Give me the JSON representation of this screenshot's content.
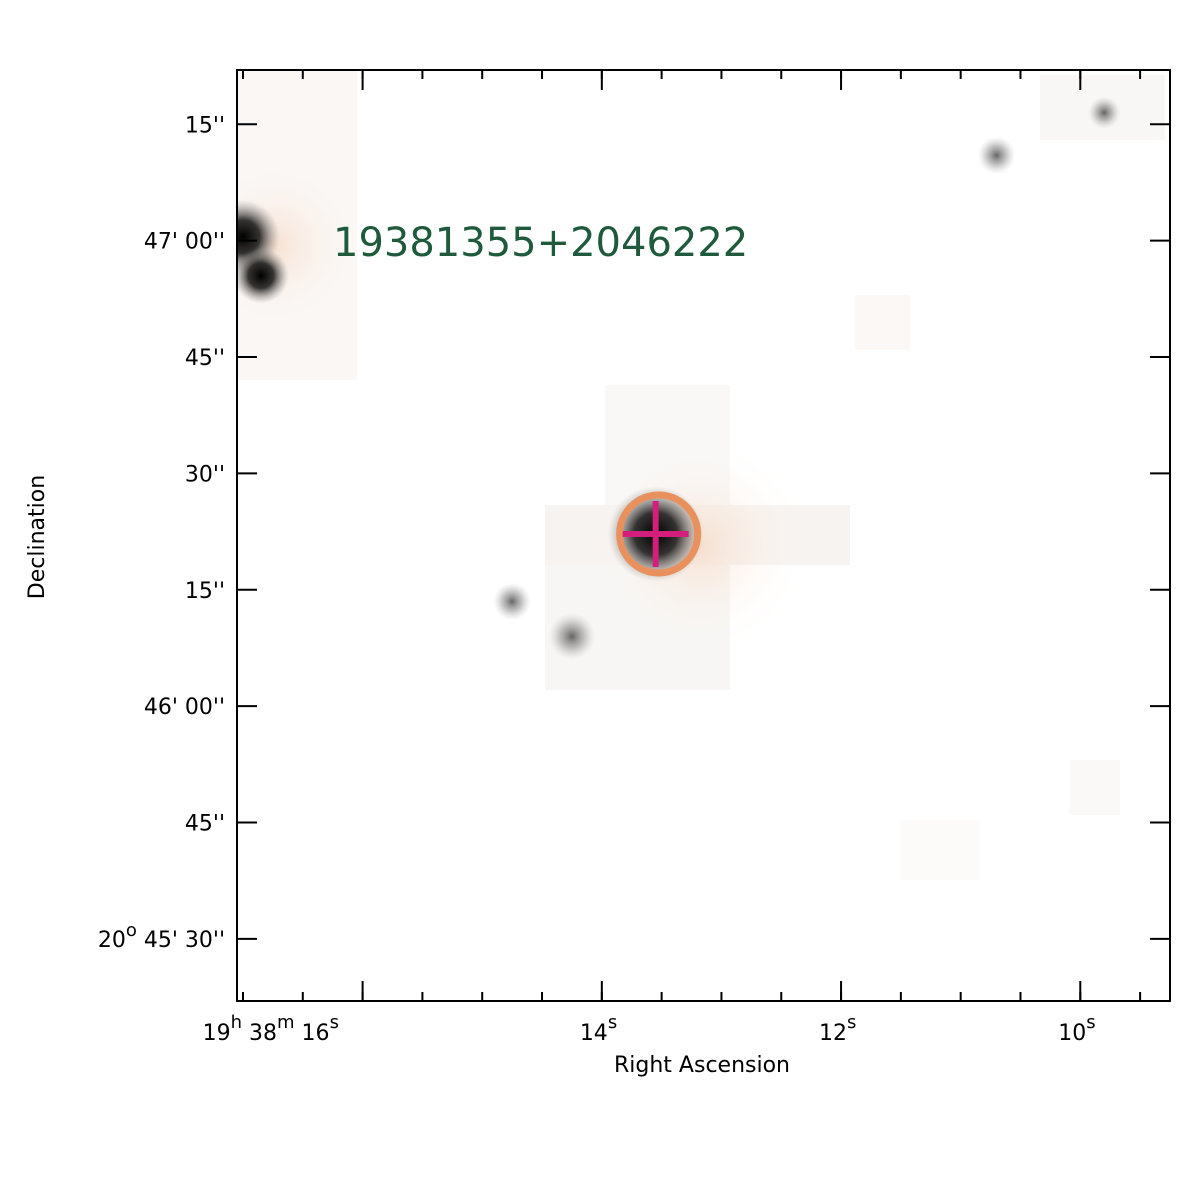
{
  "chart_data": {
    "type": "scatter",
    "xlabel": "Right Ascension",
    "ylabel": "Declination",
    "x_ticks": [
      {
        "sec": 16,
        "label": {
          "h": "19",
          "m": "38",
          "s": "16"
        }
      },
      {
        "sec": 14,
        "label": {
          "s": "14"
        }
      },
      {
        "sec": 12,
        "label": {
          "s": "12"
        }
      },
      {
        "sec": 10,
        "label": {
          "s": "10"
        }
      }
    ],
    "x_minor_step_sec": 0.5,
    "y_ticks": [
      {
        "arcsec": 75,
        "label": "15''"
      },
      {
        "arcsec": 60,
        "label": "47' 00''"
      },
      {
        "arcsec": 45,
        "label": "45''"
      },
      {
        "arcsec": 30,
        "label": "30''"
      },
      {
        "arcsec": 15,
        "label": "15''"
      },
      {
        "arcsec": 0,
        "label": "46' 00''"
      },
      {
        "arcsec": -15,
        "label": "45''"
      },
      {
        "arcsec": -30,
        "label": "20o 45' 30''",
        "deg": "20",
        "rest": "45' 30''"
      }
    ],
    "xlim_sec": [
      17.05,
      9.25
    ],
    "ylim_arcsec": [
      -38,
      82
    ],
    "grid": false,
    "target": {
      "name": "19381355+2046222",
      "ra_sec": 13.55,
      "dec_arcsec": 22.2,
      "circle_color": "#e8915e",
      "cross_color": "#d31f7b"
    },
    "sources": [
      {
        "ra_sec": 17.0,
        "dec_arcsec": 60.5,
        "size": 3
      },
      {
        "ra_sec": 16.85,
        "dec_arcsec": 55.5,
        "size": 2
      },
      {
        "ra_sec": 14.75,
        "dec_arcsec": 13.5,
        "size": 1
      },
      {
        "ra_sec": 14.25,
        "dec_arcsec": 9.0,
        "size": 1.5
      },
      {
        "ra_sec": 10.7,
        "dec_arcsec": 71.0,
        "size": 1
      },
      {
        "ra_sec": 9.8,
        "dec_arcsec": 76.5,
        "size": 0.7
      }
    ]
  }
}
